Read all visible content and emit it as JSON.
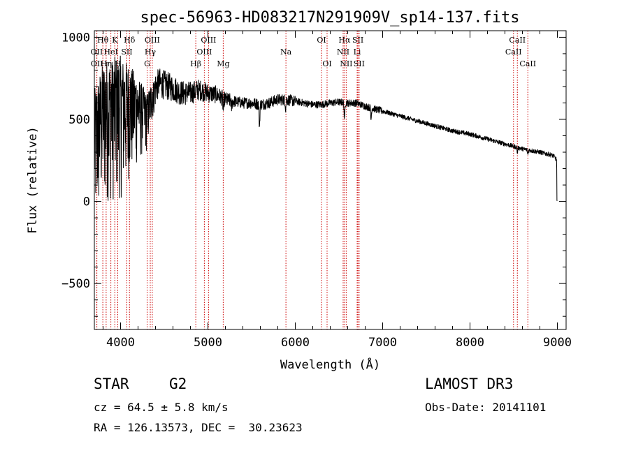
{
  "chart_data": {
    "type": "line",
    "title": "spec-56963-HD083217N291909V_sp14-137.fits",
    "xlabel": "Wavelength (Å)",
    "ylabel": "Flux (relative)",
    "xlim": [
      3700,
      9100
    ],
    "ylim": [
      -780,
      1040
    ],
    "xticks": [
      4000,
      5000,
      6000,
      7000,
      8000,
      9000
    ],
    "yticks": [
      -500,
      0,
      500,
      1000
    ],
    "spectrum_anchors": [
      [
        3700,
        450
      ],
      [
        3760,
        560
      ],
      [
        3800,
        620
      ],
      [
        3850,
        650
      ],
      [
        3900,
        640
      ],
      [
        3950,
        660
      ],
      [
        4000,
        660
      ],
      [
        4050,
        650
      ],
      [
        4100,
        660
      ],
      [
        4150,
        640
      ],
      [
        4200,
        620
      ],
      [
        4250,
        600
      ],
      [
        4300,
        560
      ],
      [
        4350,
        650
      ],
      [
        4400,
        700
      ],
      [
        4450,
        720
      ],
      [
        4500,
        710
      ],
      [
        4550,
        700
      ],
      [
        4600,
        690
      ],
      [
        4700,
        660
      ],
      [
        4800,
        660
      ],
      [
        4900,
        680
      ],
      [
        5000,
        660
      ],
      [
        5100,
        650
      ],
      [
        5200,
        620
      ],
      [
        5300,
        610
      ],
      [
        5400,
        600
      ],
      [
        5500,
        600
      ],
      [
        5600,
        590
      ],
      [
        5700,
        600
      ],
      [
        5800,
        620
      ],
      [
        5900,
        620
      ],
      [
        6000,
        610
      ],
      [
        6200,
        590
      ],
      [
        6300,
        590
      ],
      [
        6400,
        600
      ],
      [
        6500,
        605
      ],
      [
        6600,
        600
      ],
      [
        6700,
        600
      ],
      [
        6800,
        580
      ],
      [
        7000,
        550
      ],
      [
        7200,
        520
      ],
      [
        7400,
        490
      ],
      [
        7600,
        460
      ],
      [
        7800,
        430
      ],
      [
        8000,
        410
      ],
      [
        8200,
        380
      ],
      [
        8400,
        350
      ],
      [
        8600,
        320
      ],
      [
        8800,
        300
      ],
      [
        8950,
        280
      ],
      [
        8990,
        255
      ],
      [
        9000,
        5
      ]
    ],
    "absorption_dips": [
      [
        5175,
        -70
      ],
      [
        5270,
        -40
      ],
      [
        5590,
        -130
      ],
      [
        5890,
        -50
      ],
      [
        6563,
        -110
      ],
      [
        6867,
        -70
      ],
      [
        8542,
        -30
      ],
      [
        8662,
        -30
      ]
    ],
    "lines": [
      {
        "label": "Hθ",
        "x": 3797,
        "row": 0
      },
      {
        "label": "OII",
        "x": 3727,
        "row": 1
      },
      {
        "label": "OII",
        "x": 3729,
        "row": 2
      },
      {
        "label": "K",
        "x": 3934,
        "row": 0
      },
      {
        "label": "HeI",
        "x": 3889,
        "row": 1
      },
      {
        "label": "Hη",
        "x": 3835,
        "row": 2
      },
      {
        "label": "Hδ",
        "x": 4102,
        "row": 0
      },
      {
        "label": "SII",
        "x": 4072,
        "row": 1
      },
      {
        "label": "H",
        "x": 3968,
        "row": 2
      },
      {
        "label": "OIII",
        "x": 4363,
        "row": 0
      },
      {
        "label": "Hγ",
        "x": 4340,
        "row": 1
      },
      {
        "label": "G",
        "x": 4304,
        "row": 2
      },
      {
        "label": "Hβ",
        "x": 4861,
        "row": 2
      },
      {
        "label": "OIII",
        "x": 5007,
        "row": 0
      },
      {
        "label": "OIII",
        "x": 4959,
        "row": 1
      },
      {
        "label": "Mg",
        "x": 5175,
        "row": 2
      },
      {
        "label": "Na",
        "x": 5893,
        "row": 1
      },
      {
        "label": "OI",
        "x": 6300,
        "row": 0
      },
      {
        "label": "OI",
        "x": 6364,
        "row": 2
      },
      {
        "label": "Hα",
        "x": 6563,
        "row": 0
      },
      {
        "label": "NII",
        "x": 6548,
        "row": 1
      },
      {
        "label": "NII",
        "x": 6583,
        "row": 2
      },
      {
        "label": "SII",
        "x": 6717,
        "row": 0
      },
      {
        "label": "Li",
        "x": 6708,
        "row": 1
      },
      {
        "label": "SII",
        "x": 6731,
        "row": 2
      },
      {
        "label": "CaII",
        "x": 8542,
        "row": 0
      },
      {
        "label": "CaII",
        "x": 8498,
        "row": 1
      },
      {
        "label": "CaII",
        "x": 8662,
        "row": 2
      }
    ]
  },
  "info": {
    "object_class": "STAR",
    "subclass": "G2",
    "cz": "cz = 64.5 ± 5.8 km/s",
    "coords": "RA = 126.13573, DEC =  30.23623",
    "survey": "LAMOST DR3",
    "obs_date": "Obs-Date: 20141101"
  },
  "colors": {
    "spectrum": "#000000",
    "line_markers": "#cc0000"
  }
}
